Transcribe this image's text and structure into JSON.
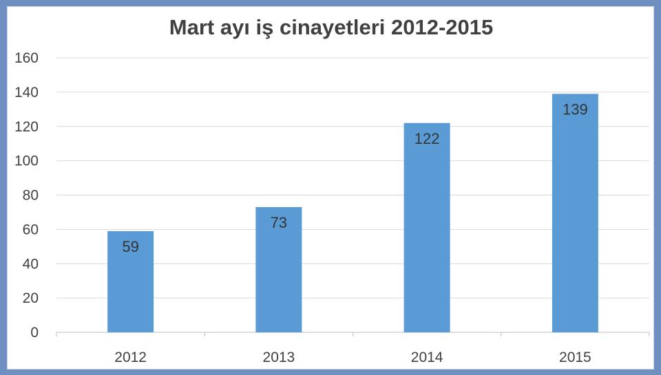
{
  "chart_data": {
    "type": "bar",
    "title": "Mart ayı iş cinayetleri 2012-2015",
    "categories": [
      "2012",
      "2013",
      "2014",
      "2015"
    ],
    "values": [
      59,
      73,
      122,
      139
    ],
    "data_labels": [
      "59",
      "73",
      "122",
      "139"
    ],
    "ylim": [
      0,
      160
    ],
    "yticks": [
      0,
      20,
      40,
      60,
      80,
      100,
      120,
      140,
      160
    ],
    "ytick_labels": [
      "0",
      "20",
      "40",
      "60",
      "80",
      "100",
      "120",
      "140",
      "160"
    ],
    "xlabel": "",
    "ylabel": "",
    "grid": true,
    "legend": "none",
    "bar_color": "#5b9bd5"
  }
}
